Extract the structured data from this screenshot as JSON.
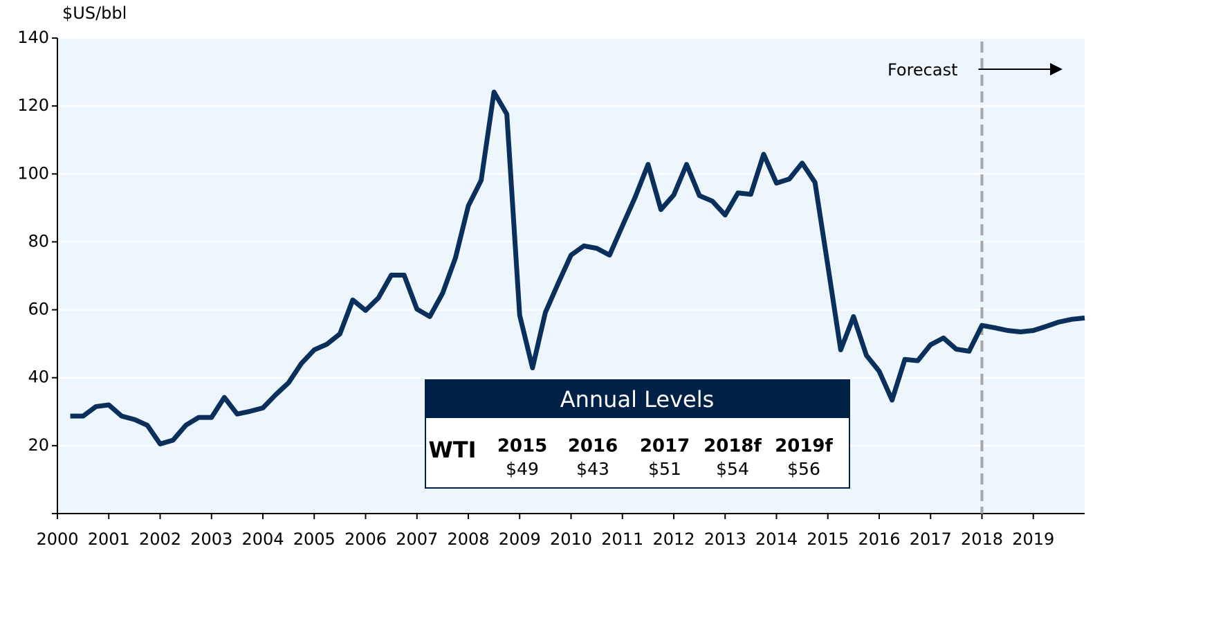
{
  "chart_data": {
    "type": "line",
    "y_label": "$US/bbl",
    "x": [
      2000.25,
      2000.5,
      2000.75,
      2001,
      2001.25,
      2001.5,
      2001.75,
      2002,
      2002.25,
      2002.5,
      2002.75,
      2003,
      2003.25,
      2003.5,
      2003.75,
      2004,
      2004.25,
      2004.5,
      2004.75,
      2005,
      2005.25,
      2005.5,
      2005.75,
      2006,
      2006.25,
      2006.5,
      2006.75,
      2007,
      2007.25,
      2007.5,
      2007.75,
      2008,
      2008.25,
      2008.5,
      2008.75,
      2009,
      2009.25,
      2009.5,
      2009.75,
      2010,
      2010.25,
      2010.5,
      2010.75,
      2011,
      2011.25,
      2011.5,
      2011.75,
      2012,
      2012.25,
      2012.5,
      2012.75,
      2013,
      2013.25,
      2013.5,
      2013.75,
      2014,
      2014.25,
      2014.5,
      2014.75,
      2015,
      2015.25,
      2015.5,
      2015.75,
      2016,
      2016.25,
      2016.5,
      2016.75,
      2017,
      2017.25,
      2017.5,
      2017.75,
      2018,
      2018.25,
      2018.5,
      2018.75,
      2019,
      2019.25,
      2019.5,
      2019.75,
      2020
    ],
    "series": [
      {
        "name": "WTI",
        "color": "#0b2f5b",
        "values": [
          28.7,
          28.7,
          31.5,
          32,
          28.7,
          27.7,
          26,
          20.5,
          21.6,
          26,
          28.3,
          28.3,
          34.2,
          29.3,
          30.1,
          31.1,
          35,
          38.5,
          44.2,
          48.2,
          49.9,
          52.9,
          62.9,
          59.8,
          63.5,
          70.2,
          70.2,
          60.2,
          58,
          64.9,
          75.3,
          90.6,
          98.1,
          124.1,
          117.6,
          58.4,
          42.9,
          59.2,
          67.8,
          76.1,
          78.8,
          78.1,
          76.1,
          84.7,
          93.2,
          102.8,
          89.5,
          93.8,
          102.8,
          93.6,
          92,
          87.9,
          94.4,
          94,
          105.8,
          97.3,
          98.5,
          103.2,
          97.5,
          73,
          48.2,
          58,
          46.6,
          41.9,
          33.4,
          45.4,
          45,
          49.7,
          51.7,
          48.4,
          47.8,
          55.4,
          54.7,
          53.9,
          53.5,
          53.9,
          55.1,
          56.4,
          57.2,
          57.6
        ]
      }
    ],
    "xlim": [
      2000,
      2020
    ],
    "xticks": [
      2000,
      2001,
      2002,
      2003,
      2004,
      2005,
      2006,
      2007,
      2008,
      2009,
      2010,
      2011,
      2012,
      2013,
      2014,
      2015,
      2016,
      2017,
      2018,
      2019
    ],
    "ylim": [
      0,
      140
    ],
    "yticks": [
      20,
      40,
      60,
      80,
      100,
      120,
      140
    ],
    "grid": true,
    "forecast": {
      "x": 2018,
      "label": "Forecast"
    },
    "annual_levels": {
      "title": "Annual Levels",
      "label": "WTI",
      "years": [
        "2015",
        "2016",
        "2017",
        "2018f",
        "2019f"
      ],
      "prices": [
        "$49",
        "$43",
        "$51",
        "$54",
        "$56"
      ]
    }
  }
}
